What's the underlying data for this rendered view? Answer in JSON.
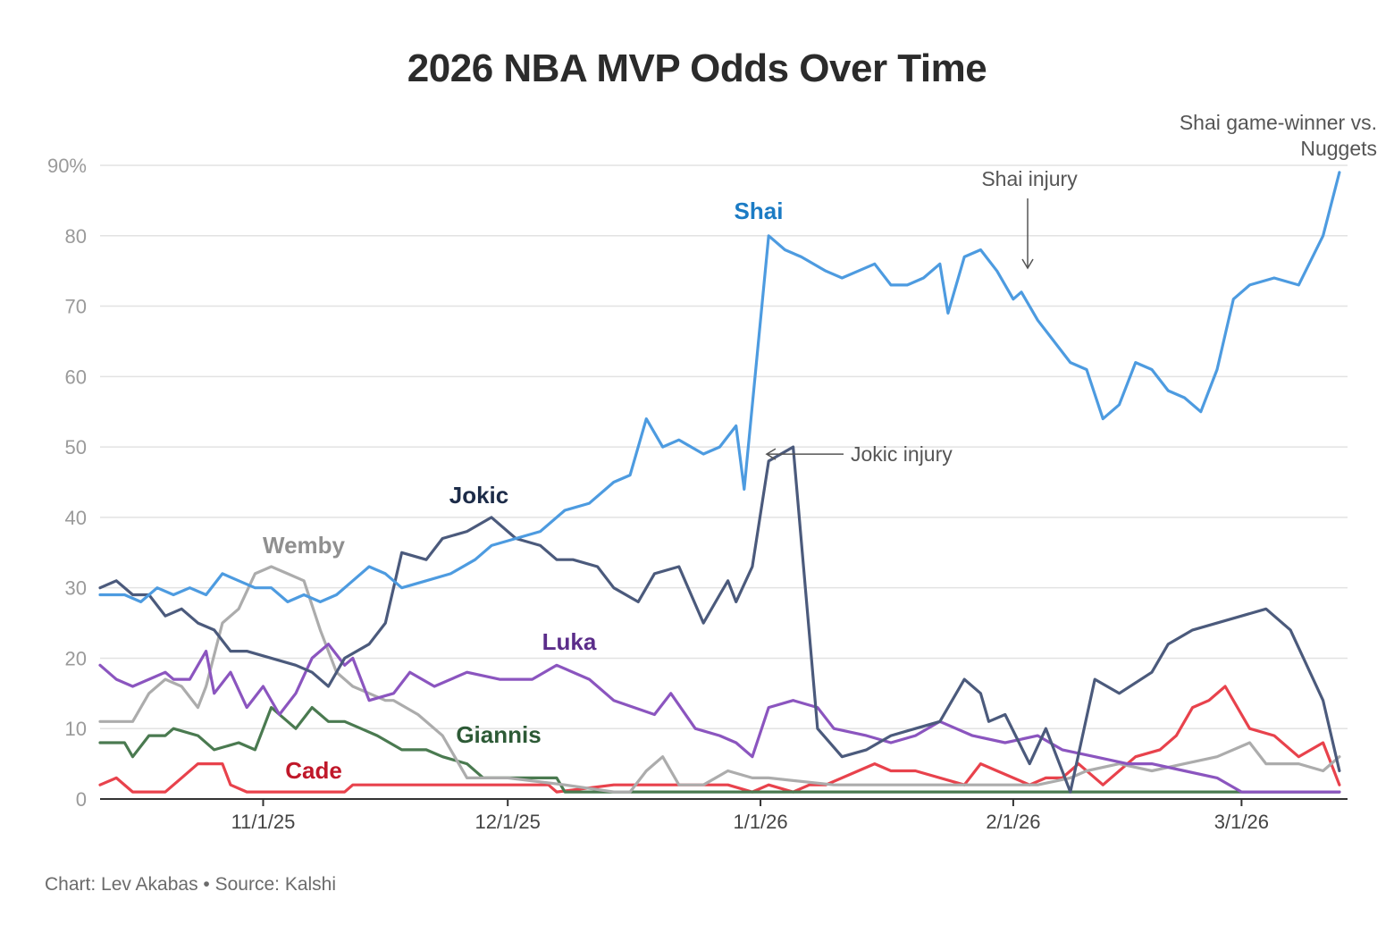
{
  "chart_data": {
    "type": "line",
    "title": "2026 NBA MVP Odds Over Time",
    "xlabel": "",
    "ylabel": "",
    "xlim": [
      "2025-10-12",
      "2026-03-14"
    ],
    "ylim": [
      0,
      90
    ],
    "yticks": [
      0,
      10,
      20,
      30,
      40,
      50,
      60,
      70,
      80,
      90
    ],
    "ytick_labels": [
      "0",
      "10",
      "20",
      "30",
      "40",
      "50",
      "60",
      "70",
      "80",
      "90%"
    ],
    "xticks": [
      "2025-11-01",
      "2025-12-01",
      "2026-01-01",
      "2026-02-01",
      "2026-03-01"
    ],
    "xtick_labels": [
      "11/1/25",
      "12/1/25",
      "1/1/26",
      "2/1/26",
      "3/1/26"
    ],
    "grid": "horizontal",
    "legend": "inline labels",
    "series": [
      {
        "name": "Cade",
        "color": "#e8424c",
        "label_color": "#c0182a",
        "x": [
          "2025-10-12",
          "2025-10-14",
          "2025-10-16",
          "2025-10-20",
          "2025-10-22",
          "2025-10-24",
          "2025-10-27",
          "2025-10-28",
          "2025-10-30",
          "2025-11-03",
          "2025-11-08",
          "2025-11-11",
          "2025-11-12",
          "2025-11-18",
          "2025-11-24",
          "2025-11-30",
          "2025-12-06",
          "2025-12-07",
          "2025-12-14",
          "2025-12-20",
          "2025-12-28",
          "2025-12-31",
          "2026-01-02",
          "2026-01-05",
          "2026-01-07",
          "2026-01-09",
          "2026-01-13",
          "2026-01-15",
          "2026-01-17",
          "2026-01-20",
          "2026-01-26",
          "2026-01-28",
          "2026-01-30",
          "2026-02-03",
          "2026-02-05",
          "2026-02-07",
          "2026-02-09",
          "2026-02-12",
          "2026-02-16",
          "2026-02-19",
          "2026-02-21",
          "2026-02-23",
          "2026-02-25",
          "2026-02-27",
          "2026-03-02",
          "2026-03-05",
          "2026-03-08",
          "2026-03-11",
          "2026-03-13"
        ],
        "values": [
          2,
          3,
          1,
          1,
          3,
          5,
          5,
          2,
          1,
          1,
          1,
          1,
          2,
          2,
          2,
          2,
          2,
          1,
          2,
          2,
          2,
          1,
          2,
          1,
          2,
          2,
          4,
          5,
          4,
          4,
          2,
          5,
          4,
          2,
          3,
          3,
          5,
          2,
          6,
          7,
          9,
          13,
          14,
          16,
          10,
          9,
          6,
          8,
          2
        ]
      },
      {
        "name": "Giannis",
        "color": "#4a7a50",
        "label_color": "#2d5a36",
        "x": [
          "2025-10-12",
          "2025-10-15",
          "2025-10-16",
          "2025-10-18",
          "2025-10-20",
          "2025-10-21",
          "2025-10-24",
          "2025-10-26",
          "2025-10-29",
          "2025-10-31",
          "2025-11-02",
          "2025-11-05",
          "2025-11-07",
          "2025-11-09",
          "2025-11-11",
          "2025-11-13",
          "2025-11-15",
          "2025-11-18",
          "2025-11-21",
          "2025-11-23",
          "2025-11-26",
          "2025-11-28",
          "2025-12-02",
          "2025-12-04",
          "2025-12-07",
          "2025-12-08",
          "2026-03-13"
        ],
        "values": [
          8,
          8,
          6,
          9,
          9,
          10,
          9,
          7,
          8,
          7,
          13,
          10,
          13,
          11,
          11,
          10,
          9,
          7,
          7,
          6,
          5,
          3,
          3,
          3,
          3,
          1,
          1
        ]
      },
      {
        "name": "Wemby",
        "color": "#acacac",
        "label_color": "#8f8f8f",
        "x": [
          "2025-10-12",
          "2025-10-16",
          "2025-10-18",
          "2025-10-20",
          "2025-10-22",
          "2025-10-24",
          "2025-10-25",
          "2025-10-27",
          "2025-10-29",
          "2025-10-31",
          "2025-11-02",
          "2025-11-04",
          "2025-11-06",
          "2025-11-08",
          "2025-11-10",
          "2025-11-12",
          "2025-11-14",
          "2025-11-16",
          "2025-11-17",
          "2025-11-20",
          "2025-11-23",
          "2025-11-26",
          "2025-12-01",
          "2025-12-08",
          "2025-12-14",
          "2025-12-16",
          "2025-12-18",
          "2025-12-20",
          "2025-12-22",
          "2025-12-25",
          "2025-12-28",
          "2025-12-31",
          "2026-01-02",
          "2026-01-10",
          "2026-01-16",
          "2026-01-24",
          "2026-01-30",
          "2026-02-04",
          "2026-02-08",
          "2026-02-10",
          "2026-02-14",
          "2026-02-18",
          "2026-02-22",
          "2026-02-26",
          "2026-03-02",
          "2026-03-04",
          "2026-03-08",
          "2026-03-11",
          "2026-03-13"
        ],
        "values": [
          11,
          11,
          15,
          17,
          16,
          13,
          16,
          25,
          27,
          32,
          33,
          32,
          31,
          24,
          18,
          16,
          15,
          14,
          14,
          12,
          9,
          3,
          3,
          2,
          1,
          1,
          4,
          6,
          2,
          2,
          4,
          3,
          3,
          2,
          2,
          2,
          2,
          2,
          3,
          4,
          5,
          4,
          5,
          6,
          8,
          5,
          5,
          4,
          6
        ]
      },
      {
        "name": "Luka",
        "color": "#8b55bf",
        "label_color": "#5b2d8a",
        "x": [
          "2025-10-12",
          "2025-10-14",
          "2025-10-16",
          "2025-10-18",
          "2025-10-20",
          "2025-10-21",
          "2025-10-23",
          "2025-10-25",
          "2025-10-26",
          "2025-10-28",
          "2025-10-30",
          "2025-11-01",
          "2025-11-03",
          "2025-11-05",
          "2025-11-07",
          "2025-11-09",
          "2025-11-11",
          "2025-11-12",
          "2025-11-14",
          "2025-11-17",
          "2025-11-19",
          "2025-11-22",
          "2025-11-26",
          "2025-11-30",
          "2025-12-04",
          "2025-12-07",
          "2025-12-11",
          "2025-12-14",
          "2025-12-19",
          "2025-12-21",
          "2025-12-24",
          "2025-12-27",
          "2025-12-29",
          "2025-12-31",
          "2026-01-02",
          "2026-01-05",
          "2026-01-08",
          "2026-01-10",
          "2026-01-14",
          "2026-01-17",
          "2026-01-20",
          "2026-01-23",
          "2026-01-27",
          "2026-01-31",
          "2026-02-04",
          "2026-02-07",
          "2026-02-11",
          "2026-02-15",
          "2026-02-18",
          "2026-02-22",
          "2026-02-26",
          "2026-03-01",
          "2026-03-13"
        ],
        "values": [
          19,
          17,
          16,
          17,
          18,
          17,
          17,
          21,
          15,
          18,
          13,
          16,
          12,
          15,
          20,
          22,
          19,
          20,
          14,
          15,
          18,
          16,
          18,
          17,
          17,
          19,
          17,
          14,
          12,
          15,
          10,
          9,
          8,
          6,
          13,
          14,
          13,
          10,
          9,
          8,
          9,
          11,
          9,
          8,
          9,
          7,
          6,
          5,
          5,
          4,
          3,
          1,
          1
        ]
      },
      {
        "name": "Jokic",
        "color": "#4b5a7c",
        "label_color": "#1c2b48",
        "x": [
          "2025-10-12",
          "2025-10-14",
          "2025-10-16",
          "2025-10-18",
          "2025-10-20",
          "2025-10-22",
          "2025-10-24",
          "2025-10-26",
          "2025-10-28",
          "2025-10-30",
          "2025-11-02",
          "2025-11-05",
          "2025-11-07",
          "2025-11-09",
          "2025-11-11",
          "2025-11-14",
          "2025-11-16",
          "2025-11-18",
          "2025-11-21",
          "2025-11-23",
          "2025-11-26",
          "2025-11-29",
          "2025-12-02",
          "2025-12-05",
          "2025-12-07",
          "2025-12-09",
          "2025-12-12",
          "2025-12-14",
          "2025-12-17",
          "2025-12-19",
          "2025-12-22",
          "2025-12-25",
          "2025-12-27",
          "2025-12-28",
          "2025-12-29",
          "2025-12-31",
          "2026-01-02",
          "2026-01-05",
          "2026-01-08",
          "2026-01-11",
          "2026-01-14",
          "2026-01-17",
          "2026-01-20",
          "2026-01-23",
          "2026-01-26",
          "2026-01-28",
          "2026-01-29",
          "2026-01-31",
          "2026-02-03",
          "2026-02-05",
          "2026-02-08",
          "2026-02-11",
          "2026-02-14",
          "2026-02-18",
          "2026-02-20",
          "2026-02-23",
          "2026-02-26",
          "2026-03-01",
          "2026-03-04",
          "2026-03-07",
          "2026-03-11",
          "2026-03-13"
        ],
        "values": [
          30,
          31,
          29,
          29,
          26,
          27,
          25,
          24,
          21,
          21,
          20,
          19,
          18,
          16,
          20,
          22,
          25,
          35,
          34,
          37,
          38,
          40,
          37,
          36,
          34,
          34,
          33,
          30,
          28,
          32,
          33,
          25,
          29,
          31,
          28,
          33,
          48,
          50,
          10,
          6,
          7,
          9,
          10,
          11,
          17,
          15,
          11,
          12,
          5,
          10,
          1,
          17,
          15,
          18,
          22,
          24,
          25,
          26,
          27,
          24,
          14,
          4
        ]
      },
      {
        "name": "Shai",
        "color": "#4d9be0",
        "label_color": "#1b7bc4",
        "x": [
          "2025-10-12",
          "2025-10-15",
          "2025-10-17",
          "2025-10-19",
          "2025-10-21",
          "2025-10-23",
          "2025-10-25",
          "2025-10-27",
          "2025-10-29",
          "2025-10-31",
          "2025-11-02",
          "2025-11-04",
          "2025-11-06",
          "2025-11-08",
          "2025-11-10",
          "2025-11-12",
          "2025-11-14",
          "2025-11-16",
          "2025-11-18",
          "2025-11-21",
          "2025-11-24",
          "2025-11-27",
          "2025-11-29",
          "2025-12-02",
          "2025-12-05",
          "2025-12-08",
          "2025-12-11",
          "2025-12-14",
          "2025-12-16",
          "2025-12-18",
          "2025-12-20",
          "2025-12-22",
          "2025-12-25",
          "2025-12-27",
          "2025-12-29",
          "2025-12-30",
          "2026-01-02",
          "2026-01-04",
          "2026-01-06",
          "2026-01-09",
          "2026-01-11",
          "2026-01-13",
          "2026-01-15",
          "2026-01-17",
          "2026-01-19",
          "2026-01-21",
          "2026-01-23",
          "2026-01-24",
          "2026-01-26",
          "2026-01-28",
          "2026-01-30",
          "2026-02-01",
          "2026-02-02",
          "2026-02-04",
          "2026-02-06",
          "2026-02-08",
          "2026-02-10",
          "2026-02-12",
          "2026-02-14",
          "2026-02-16",
          "2026-02-18",
          "2026-02-20",
          "2026-02-22",
          "2026-02-24",
          "2026-02-26",
          "2026-02-28",
          "2026-03-02",
          "2026-03-05",
          "2026-03-08",
          "2026-03-11",
          "2026-03-13"
        ],
        "values": [
          29,
          29,
          28,
          30,
          29,
          30,
          29,
          32,
          31,
          30,
          30,
          28,
          29,
          28,
          29,
          31,
          33,
          32,
          30,
          31,
          32,
          34,
          36,
          37,
          38,
          41,
          42,
          45,
          46,
          54,
          50,
          51,
          49,
          50,
          53,
          44,
          80,
          78,
          77,
          75,
          74,
          75,
          76,
          73,
          73,
          74,
          76,
          69,
          77,
          78,
          75,
          71,
          72,
          68,
          65,
          62,
          61,
          54,
          56,
          62,
          61,
          58,
          57,
          55,
          61,
          71,
          73,
          74,
          73,
          80,
          89
        ]
      }
    ],
    "annotations": [
      {
        "text": "Jokic injury",
        "x": "2025-12-31",
        "y": 50
      },
      {
        "text": "Shai injury",
        "x": "2026-02-02",
        "y": 74
      },
      {
        "text": "Shai game-winner vs. Nuggets",
        "x": "2026-03-13",
        "y": 89
      }
    ]
  },
  "footer": "Chart: Lev Akabas • Source: Kalshi"
}
